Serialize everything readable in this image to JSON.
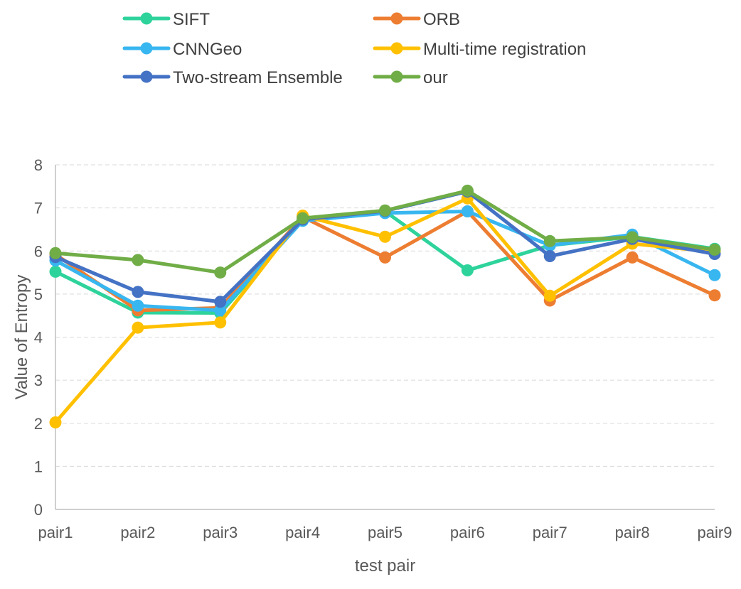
{
  "chart_data": {
    "type": "line",
    "title": "",
    "xlabel": "test pair",
    "ylabel": "Value of Entropy",
    "categories": [
      "pair1",
      "pair2",
      "pair3",
      "pair4",
      "pair5",
      "pair6",
      "pair7",
      "pair8",
      "pair9"
    ],
    "ylim": [
      0,
      8
    ],
    "yticks": [
      "0",
      "1",
      "2",
      "3",
      "4",
      "5",
      "6",
      "7",
      "8"
    ],
    "grid": true,
    "legend_position": "top",
    "series": [
      {
        "name": "SIFT",
        "color": "#2ed39c",
        "values": [
          5.52,
          4.57,
          4.56,
          6.72,
          6.92,
          5.55,
          6.13,
          6.33,
          6.05
        ]
      },
      {
        "name": "ORB",
        "color": "#ed7d31",
        "values": [
          5.92,
          4.62,
          4.68,
          6.79,
          5.85,
          6.92,
          4.85,
          5.85,
          4.97
        ]
      },
      {
        "name": "CNNGeo",
        "color": "#38b6f0",
        "values": [
          5.78,
          4.73,
          4.62,
          6.7,
          6.88,
          6.92,
          6.13,
          6.38,
          5.44
        ]
      },
      {
        "name": "Multi-time registration",
        "color": "#ffc000",
        "values": [
          2.02,
          4.22,
          4.34,
          6.82,
          6.33,
          7.22,
          4.96,
          6.17,
          5.98
        ]
      },
      {
        "name": "Two-stream Ensemble",
        "color": "#4472c4",
        "values": [
          5.86,
          5.05,
          4.82,
          6.73,
          6.93,
          7.38,
          5.88,
          6.28,
          5.93
        ]
      },
      {
        "name": "our",
        "color": "#70ad47",
        "values": [
          5.95,
          5.79,
          5.5,
          6.76,
          6.94,
          7.4,
          6.23,
          6.32,
          6.03
        ]
      }
    ]
  }
}
